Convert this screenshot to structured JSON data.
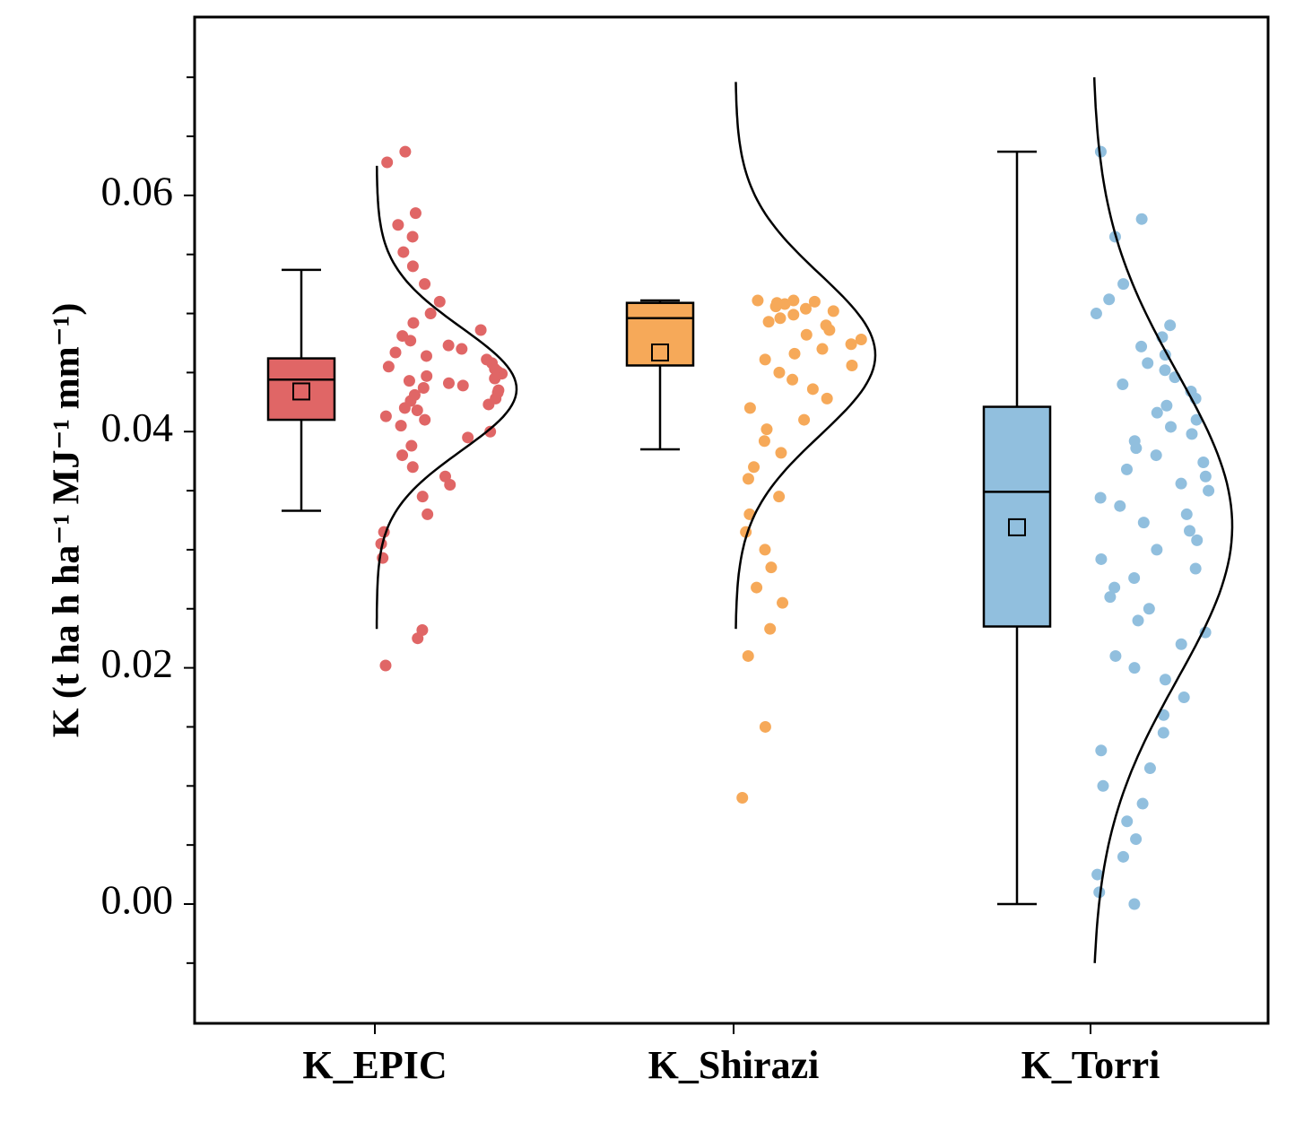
{
  "chart_data": {
    "type": "raincloud",
    "ylabel": "K (t ha h ha⁻¹ MJ⁻¹ mm⁻¹)",
    "ylim": [
      -0.0101,
      0.0751
    ],
    "yticks": [
      "0.00",
      "0.02",
      "0.04",
      "0.06"
    ],
    "categories": [
      "K_EPIC",
      "K_Shirazi",
      "K_Torri"
    ],
    "grid": false,
    "legend": "none",
    "series": [
      {
        "category": "K_EPIC",
        "color": "#e06666",
        "box": {
          "whisker_low": 0.0333,
          "q1": 0.041,
          "median": 0.0444,
          "q3": 0.0462,
          "whisker_high": 0.0537,
          "mean": 0.0434
        },
        "density": {
          "mean": 0.0436,
          "sd": 0.0052,
          "range": [
            0.0233,
            0.0625
          ]
        },
        "points": [
          0.0202,
          0.0225,
          0.0232,
          0.0293,
          0.0305,
          0.0315,
          0.033,
          0.0345,
          0.0355,
          0.0362,
          0.037,
          0.038,
          0.0388,
          0.0395,
          0.04,
          0.0405,
          0.041,
          0.0413,
          0.0418,
          0.042,
          0.0423,
          0.0426,
          0.0428,
          0.0431,
          0.0433,
          0.0435,
          0.0437,
          0.0439,
          0.0441,
          0.0443,
          0.0445,
          0.0447,
          0.0449,
          0.0451,
          0.0453,
          0.0455,
          0.0458,
          0.0461,
          0.0464,
          0.0467,
          0.047,
          0.0473,
          0.0477,
          0.0481,
          0.0486,
          0.0492,
          0.05,
          0.051,
          0.0525,
          0.054,
          0.0552,
          0.0565,
          0.0575,
          0.0585,
          0.0628,
          0.0637
        ]
      },
      {
        "category": "K_Shirazi",
        "color": "#f6a959",
        "box": {
          "whisker_low": 0.0385,
          "q1": 0.0456,
          "median": 0.0496,
          "q3": 0.0509,
          "whisker_high": 0.0511,
          "mean": 0.0467
        },
        "density": {
          "mean": 0.0465,
          "sd": 0.0068,
          "range": [
            0.0233,
            0.0696
          ]
        },
        "points": [
          0.009,
          0.015,
          0.021,
          0.0233,
          0.0255,
          0.0268,
          0.0285,
          0.03,
          0.0315,
          0.033,
          0.0345,
          0.036,
          0.037,
          0.0382,
          0.0392,
          0.0402,
          0.041,
          0.042,
          0.0428,
          0.0436,
          0.0444,
          0.045,
          0.0456,
          0.0461,
          0.0466,
          0.047,
          0.0474,
          0.0478,
          0.0482,
          0.0486,
          0.049,
          0.0493,
          0.0496,
          0.0499,
          0.0502,
          0.0504,
          0.0506,
          0.0508,
          0.0509,
          0.051,
          0.0511,
          0.0511
        ]
      },
      {
        "category": "K_Torri",
        "color": "#91bfde",
        "box": {
          "whisker_low": 0.0,
          "q1": 0.0235,
          "median": 0.0349,
          "q3": 0.0421,
          "whisker_high": 0.0637,
          "mean": 0.0319
        },
        "density": {
          "mean": 0.032,
          "sd": 0.013,
          "range": [
            -0.005,
            0.07
          ]
        },
        "points": [
          0.0,
          0.001,
          0.0025,
          0.004,
          0.0055,
          0.007,
          0.0085,
          0.01,
          0.0115,
          0.013,
          0.0145,
          0.016,
          0.0175,
          0.019,
          0.02,
          0.021,
          0.022,
          0.023,
          0.024,
          0.025,
          0.026,
          0.0268,
          0.0276,
          0.0284,
          0.0292,
          0.03,
          0.0308,
          0.0316,
          0.0323,
          0.033,
          0.0337,
          0.0344,
          0.035,
          0.0356,
          0.0362,
          0.0368,
          0.0374,
          0.038,
          0.0386,
          0.0392,
          0.0398,
          0.0404,
          0.041,
          0.0416,
          0.0422,
          0.0428,
          0.0434,
          0.044,
          0.0446,
          0.0452,
          0.0458,
          0.0465,
          0.0472,
          0.048,
          0.049,
          0.05,
          0.0512,
          0.0525,
          0.0565,
          0.058,
          0.0637
        ]
      }
    ]
  }
}
